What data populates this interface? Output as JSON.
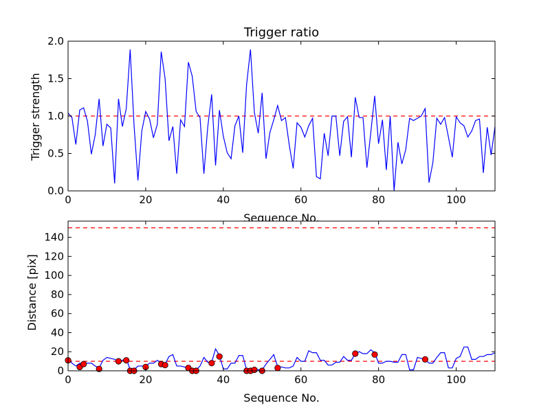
{
  "chart_data": [
    {
      "type": "line",
      "title": "Trigger ratio",
      "xlabel": "Sequence No.",
      "ylabel": "Trigger strength",
      "xlim": [
        0,
        110
      ],
      "ylim": [
        0,
        2.0
      ],
      "xticks": [
        0,
        20,
        40,
        60,
        80,
        100
      ],
      "yticks": [
        0.0,
        0.5,
        1.0,
        1.5,
        2.0
      ],
      "ytick_labels": [
        "0.0",
        "0.5",
        "1.0",
        "1.5",
        "2.0"
      ],
      "line_color": "#0000ff",
      "threshold": {
        "value": 1.0,
        "color": "#ff0000",
        "style": "dashed"
      },
      "series": [
        {
          "name": "Trigger strength",
          "values": [
            1.04,
            0.98,
            0.62,
            1.08,
            1.11,
            0.93,
            0.49,
            0.75,
            1.23,
            0.6,
            0.89,
            0.84,
            0.1,
            1.23,
            0.86,
            1.1,
            1.89,
            0.88,
            0.14,
            0.8,
            1.06,
            0.96,
            0.71,
            0.89,
            1.86,
            1.5,
            0.67,
            0.86,
            0.23,
            0.95,
            0.86,
            1.72,
            1.53,
            1.06,
            0.98,
            0.23,
            0.86,
            1.29,
            0.34,
            1.08,
            0.73,
            0.51,
            0.43,
            0.87,
            1.0,
            0.51,
            1.42,
            1.89,
            1.05,
            0.77,
            1.31,
            0.43,
            0.78,
            0.95,
            1.14,
            0.94,
            0.98,
            0.61,
            0.3,
            0.91,
            0.85,
            0.72,
            0.87,
            0.97,
            0.19,
            0.16,
            0.77,
            0.47,
            1.0,
            1.0,
            0.47,
            0.93,
            0.99,
            0.45,
            1.25,
            0.98,
            0.98,
            0.31,
            0.78,
            1.27,
            0.63,
            0.95,
            0.28,
            1.0,
            0.0,
            0.65,
            0.36,
            0.55,
            0.97,
            0.94,
            0.97,
            1.0,
            1.1,
            0.11,
            0.38,
            0.97,
            0.89,
            0.98,
            0.72,
            0.45,
            0.99,
            0.91,
            0.87,
            0.72,
            0.8,
            0.94,
            0.96,
            0.24,
            0.85,
            0.48,
            0.86
          ]
        }
      ]
    },
    {
      "type": "line",
      "title": "",
      "xlabel": "Sequence No.",
      "ylabel": "Distance [pix]",
      "xlim": [
        0,
        110
      ],
      "ylim": [
        0,
        157
      ],
      "xticks": [
        0,
        20,
        40,
        60,
        80,
        100
      ],
      "yticks": [
        0,
        20,
        40,
        60,
        80,
        100,
        120,
        140
      ],
      "line_color": "#0000ff",
      "marker_color": "#ff0000",
      "thresholds": [
        {
          "value": 10,
          "color": "#ff0000",
          "style": "dashed"
        },
        {
          "value": 150,
          "color": "#ff0000",
          "style": "dashed"
        }
      ],
      "series": [
        {
          "name": "Distance",
          "values": [
            12,
            8,
            5,
            8,
            7,
            8,
            8,
            5,
            3,
            11,
            14,
            13,
            12,
            10,
            11,
            13,
            1,
            1,
            5,
            5,
            5,
            8,
            8,
            11,
            8,
            7,
            15,
            17,
            5,
            5,
            4,
            2,
            1,
            1,
            5,
            14,
            9,
            9,
            23,
            16,
            2,
            2,
            8,
            8,
            16,
            16,
            1,
            1,
            2,
            1,
            1,
            7,
            12,
            17,
            4,
            4,
            3,
            3,
            5,
            14,
            10,
            10,
            21,
            19,
            19,
            11,
            11,
            6,
            6,
            9,
            9,
            15,
            11,
            11,
            18,
            20,
            18,
            18,
            22,
            19,
            8,
            8,
            10,
            10,
            9,
            9,
            17,
            17,
            1,
            1,
            14,
            13,
            12,
            8,
            8,
            14,
            19,
            19,
            3,
            3,
            13,
            15,
            25,
            25,
            12,
            12,
            15,
            15,
            17,
            17,
            19
          ]
        }
      ],
      "markers": [
        {
          "x": 0,
          "y": 11
        },
        {
          "x": 3,
          "y": 4
        },
        {
          "x": 4,
          "y": 7
        },
        {
          "x": 8,
          "y": 2
        },
        {
          "x": 13,
          "y": 10
        },
        {
          "x": 15,
          "y": 11
        },
        {
          "x": 16,
          "y": 0
        },
        {
          "x": 17,
          "y": 0
        },
        {
          "x": 20,
          "y": 4
        },
        {
          "x": 24,
          "y": 7
        },
        {
          "x": 25,
          "y": 6
        },
        {
          "x": 31,
          "y": 3
        },
        {
          "x": 32,
          "y": 0
        },
        {
          "x": 33,
          "y": 0
        },
        {
          "x": 37,
          "y": 8
        },
        {
          "x": 39,
          "y": 15
        },
        {
          "x": 46,
          "y": 0
        },
        {
          "x": 47,
          "y": 0
        },
        {
          "x": 48,
          "y": 1
        },
        {
          "x": 50,
          "y": 0
        },
        {
          "x": 54,
          "y": 3
        },
        {
          "x": 74,
          "y": 18
        },
        {
          "x": 79,
          "y": 17
        },
        {
          "x": 92,
          "y": 12
        }
      ]
    }
  ]
}
